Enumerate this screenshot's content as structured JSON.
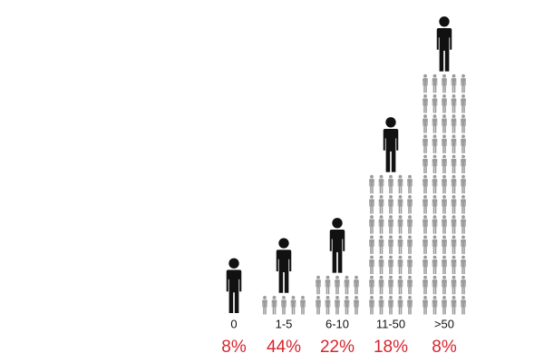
{
  "chart_data": {
    "type": "pictograph",
    "categories": [
      "0",
      "1-5",
      "6-10",
      "11-50",
      ">50"
    ],
    "values": [
      8,
      44,
      22,
      18,
      8
    ],
    "value_labels": [
      "8%",
      "44%",
      "22%",
      "18%",
      "8%"
    ],
    "color": "#d7262e"
  }
}
